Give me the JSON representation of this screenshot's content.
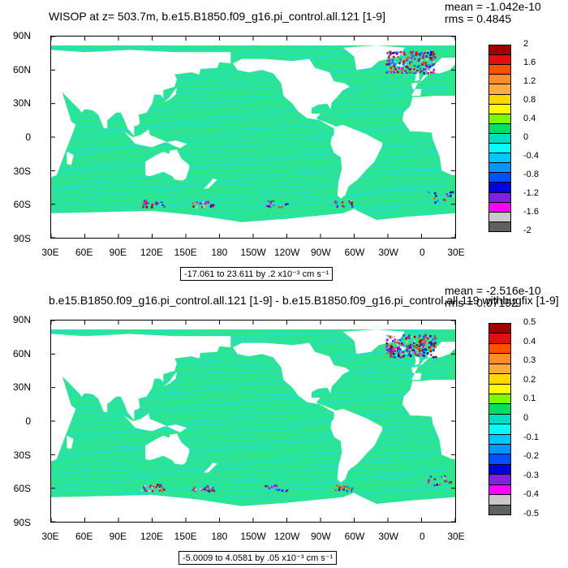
{
  "chart_data": [
    {
      "type": "heatmap",
      "title": "WISOP at z= 503.7m, b.e15.B1850.f09_g16.pi_control.all.121 [1-9]",
      "stats": {
        "mean": "mean = -1.042e-10",
        "rms": "rms = 0.4845"
      },
      "x_ticks": [
        "30E",
        "60E",
        "90E",
        "120E",
        "150E",
        "180",
        "150W",
        "120W",
        "90W",
        "60W",
        "30W",
        "0",
        "30E"
      ],
      "y_ticks": [
        "90N",
        "60N",
        "30N",
        "0",
        "30S",
        "60S",
        "90S"
      ],
      "contour_info": "-17.061 to 23.611 by .2 x10⁻³ cm s⁻¹",
      "colorbar_labels": [
        "2",
        "1.6",
        "1.2",
        "0.8",
        "0.4",
        "0",
        "-0.4",
        "-0.8",
        "-1.2",
        "-1.6",
        "-2"
      ],
      "colorbar_colors": [
        "#a00000",
        "#e01010",
        "#ff5000",
        "#ff8c28",
        "#ffaa3c",
        "#ffd700",
        "#ffff00",
        "#7cfc00",
        "#00e060",
        "#00e0c0",
        "#00ffff",
        "#00c8ff",
        "#0096ff",
        "#0050ff",
        "#0000e0",
        "#8020e0",
        "#ff00ff",
        "#c8c8c8",
        "#606060"
      ],
      "x_range": [
        30,
        390
      ],
      "y_range": [
        -90,
        90
      ]
    },
    {
      "type": "heatmap",
      "title": "b.e15.B1850.f09_g16.pi_control.all.121 [1-9] - b.e15.B1850.f09_g16.pi_control.all.119 withbugfix [1-9]",
      "stats": {
        "mean": "mean = -2.516e-10",
        "rms": "rms = 0.07192"
      },
      "x_ticks": [
        "30E",
        "60E",
        "90E",
        "120E",
        "150E",
        "180",
        "150W",
        "120W",
        "90W",
        "60W",
        "30W",
        "0",
        "30E"
      ],
      "y_ticks": [
        "90N",
        "60N",
        "30N",
        "0",
        "30S",
        "60S",
        "90S"
      ],
      "contour_info": "-5.0009 to 4.0581 by .05 x10⁻³ cm s⁻¹",
      "colorbar_labels": [
        "0.5",
        "0.4",
        "0.3",
        "0.2",
        "0.1",
        "0",
        "-0.1",
        "-0.2",
        "-0.3",
        "-0.4",
        "-0.5"
      ],
      "colorbar_colors": [
        "#a00000",
        "#e01010",
        "#ff5000",
        "#ff8c28",
        "#ffaa3c",
        "#ffd700",
        "#ffff00",
        "#7cfc00",
        "#00e060",
        "#00e0c0",
        "#00ffff",
        "#00c8ff",
        "#0096ff",
        "#0050ff",
        "#0000e0",
        "#8020e0",
        "#ff00ff",
        "#c8c8c8",
        "#606060"
      ],
      "x_range": [
        30,
        390
      ],
      "y_range": [
        -90,
        90
      ]
    }
  ],
  "colors": {
    "ocean_base": "#2ee58a",
    "ocean_alt": "#21dfc6",
    "land": "#ffffff"
  }
}
